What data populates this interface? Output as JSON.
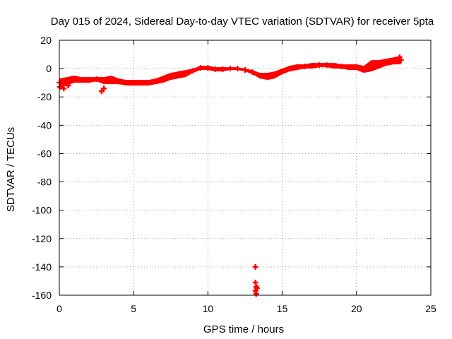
{
  "chart_data": {
    "type": "scatter",
    "title": "Day 015 of 2024, Sidereal Day-to-day VTEC variation (SDTVAR) for receiver 5pta",
    "xlabel": "GPS time / hours",
    "ylabel": "SDTVAR / TECUs",
    "xlim": [
      0,
      25
    ],
    "ylim": [
      -160,
      20
    ],
    "xticks": [
      0,
      5,
      10,
      15,
      20,
      25
    ],
    "yticks": [
      20,
      0,
      -20,
      -40,
      -60,
      -80,
      -100,
      -120,
      -140,
      -160
    ],
    "grid": true,
    "legend": "none",
    "series": [
      {
        "name": "SDTVAR",
        "color": "#ff0000",
        "marker": "plus",
        "band_x": [
          0.0,
          0.5,
          1.0,
          1.5,
          2.0,
          2.5,
          3.0,
          3.5,
          4.0,
          4.5,
          5.0,
          5.5,
          6.0,
          6.5,
          7.0,
          7.5,
          8.0,
          8.5,
          9.0,
          9.5,
          10.0,
          10.5,
          11.0,
          11.5,
          12.0,
          12.5,
          13.0,
          13.5,
          14.0,
          14.5,
          15.0,
          15.5,
          16.0,
          16.5,
          17.0,
          17.5,
          18.0,
          18.5,
          19.0,
          19.5,
          20.0,
          20.5,
          21.0,
          21.5,
          22.0,
          22.5,
          23.0
        ],
        "band_upper": [
          -7,
          -6,
          -5,
          -6,
          -6,
          -6,
          -6,
          -5,
          -7,
          -8,
          -8,
          -8,
          -8,
          -7,
          -5,
          -3,
          -2,
          -1,
          0,
          2,
          2,
          1,
          1,
          1,
          1,
          0,
          -1,
          -3,
          -3,
          -2,
          0,
          2,
          3,
          3,
          4,
          4,
          4,
          4,
          3,
          3,
          3,
          2,
          6,
          6,
          7,
          8,
          9
        ],
        "band_lower": [
          -13,
          -12,
          -10,
          -10,
          -10,
          -9,
          -11,
          -11,
          -11,
          -12,
          -12,
          -12,
          -12,
          -11,
          -10,
          -8,
          -7,
          -6,
          -3,
          -1,
          -1,
          -2,
          -2,
          -1,
          -1,
          -2,
          -4,
          -7,
          -8,
          -7,
          -4,
          -2,
          -1,
          0,
          0,
          1,
          1,
          0,
          0,
          -1,
          -1,
          -3,
          -2,
          0,
          2,
          3,
          3
        ],
        "scatter_x": [
          0.05,
          0.3,
          0.6,
          2.85,
          3.0,
          13.2,
          13.2,
          13.25,
          13.2,
          13.25,
          13.3,
          22.9
        ],
        "scatter_y": [
          -13,
          -14,
          -12,
          -16,
          -14,
          -140,
          -151,
          -154,
          -157,
          -159,
          -155,
          8
        ]
      }
    ]
  }
}
